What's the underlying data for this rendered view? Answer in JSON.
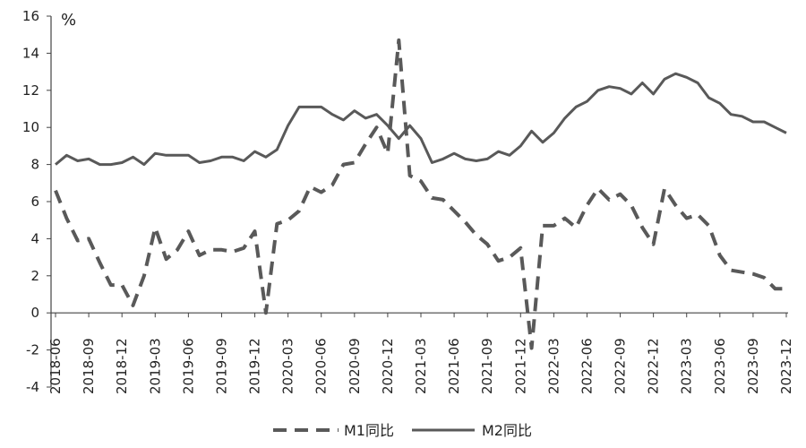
{
  "chart_data": {
    "type": "line",
    "unit_label": "%",
    "ylim": [
      -4,
      16
    ],
    "yticks": [
      -4,
      -2,
      0,
      2,
      4,
      6,
      8,
      10,
      12,
      14,
      16
    ],
    "grid": false,
    "legend_position": "bottom-center",
    "line_color": "#595959",
    "x": [
      "2018-06",
      "2018-07",
      "2018-08",
      "2018-09",
      "2018-10",
      "2018-11",
      "2018-12",
      "2019-01",
      "2019-02",
      "2019-03",
      "2019-04",
      "2019-05",
      "2019-06",
      "2019-07",
      "2019-08",
      "2019-09",
      "2019-10",
      "2019-11",
      "2019-12",
      "2020-01",
      "2020-02",
      "2020-03",
      "2020-04",
      "2020-05",
      "2020-06",
      "2020-07",
      "2020-08",
      "2020-09",
      "2020-10",
      "2020-11",
      "2020-12",
      "2021-01",
      "2021-02",
      "2021-03",
      "2021-04",
      "2021-05",
      "2021-06",
      "2021-07",
      "2021-08",
      "2021-09",
      "2021-10",
      "2021-11",
      "2021-12",
      "2022-01",
      "2022-02",
      "2022-03",
      "2022-04",
      "2022-05",
      "2022-06",
      "2022-07",
      "2022-08",
      "2022-09",
      "2022-10",
      "2022-11",
      "2022-12",
      "2023-01",
      "2023-02",
      "2023-03",
      "2023-04",
      "2023-05",
      "2023-06",
      "2023-07",
      "2023-08",
      "2023-09",
      "2023-10",
      "2023-11",
      "2023-12"
    ],
    "xtick_labels": [
      "2018-06",
      "2018-09",
      "2018-12",
      "2019-03",
      "2019-06",
      "2019-09",
      "2019-12",
      "2020-03",
      "2020-06",
      "2020-09",
      "2020-12",
      "2021-03",
      "2021-06",
      "2021-09",
      "2021-12",
      "2022-03",
      "2022-06",
      "2022-09",
      "2022-12",
      "2023-03",
      "2023-06",
      "2023-09",
      "2023-12"
    ],
    "series": [
      {
        "name": "M1同比",
        "style": "dashed",
        "values": [
          6.6,
          5.1,
          3.9,
          4.0,
          2.7,
          1.5,
          1.5,
          0.4,
          2.0,
          4.6,
          2.9,
          3.4,
          4.4,
          3.1,
          3.4,
          3.4,
          3.3,
          3.5,
          4.4,
          0.0,
          4.8,
          5.0,
          5.5,
          6.8,
          6.5,
          6.9,
          8.0,
          8.1,
          9.1,
          10.0,
          8.6,
          14.7,
          7.4,
          7.1,
          6.2,
          6.1,
          5.5,
          4.9,
          4.2,
          3.7,
          2.8,
          3.0,
          3.5,
          -1.9,
          4.7,
          4.7,
          5.1,
          4.6,
          5.8,
          6.7,
          6.1,
          6.4,
          5.8,
          4.6,
          3.7,
          6.7,
          5.8,
          5.1,
          5.3,
          4.7,
          3.1,
          2.3,
          2.2,
          2.1,
          1.9,
          1.3,
          1.3
        ]
      },
      {
        "name": "M2同比",
        "style": "solid",
        "values": [
          8.0,
          8.5,
          8.2,
          8.3,
          8.0,
          8.0,
          8.1,
          8.4,
          8.0,
          8.6,
          8.5,
          8.5,
          8.5,
          8.1,
          8.2,
          8.4,
          8.4,
          8.2,
          8.7,
          8.4,
          8.8,
          10.1,
          11.1,
          11.1,
          11.1,
          10.7,
          10.4,
          10.9,
          10.5,
          10.7,
          10.1,
          9.4,
          10.1,
          9.4,
          8.1,
          8.3,
          8.6,
          8.3,
          8.2,
          8.3,
          8.7,
          8.5,
          9.0,
          9.8,
          9.2,
          9.7,
          10.5,
          11.1,
          11.4,
          12.0,
          12.2,
          12.1,
          11.8,
          12.4,
          11.8,
          12.6,
          12.9,
          12.7,
          12.4,
          11.6,
          11.3,
          10.7,
          10.6,
          10.3,
          10.3,
          10.0,
          9.7
        ]
      }
    ]
  }
}
